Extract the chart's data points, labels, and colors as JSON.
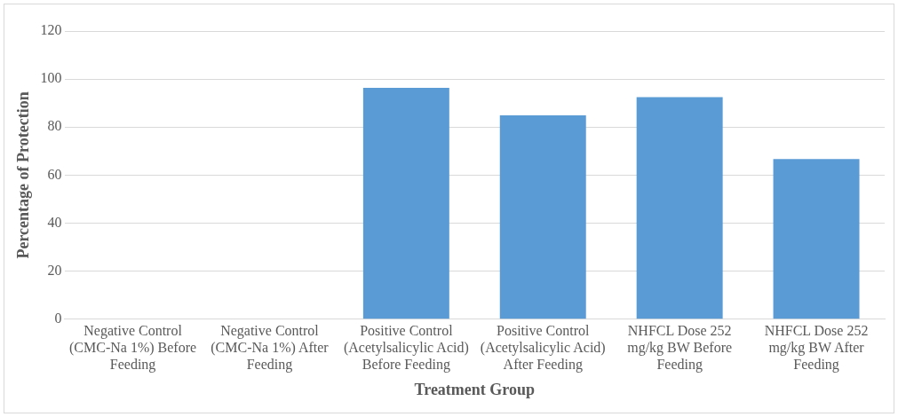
{
  "chart_data": {
    "type": "bar",
    "xlabel": "Treatment Group",
    "ylabel": "Percentage of Protection",
    "categories": [
      "Negative Control (CMC-Na 1%) Before Feeding",
      "Negative Control (CMC-Na 1%) After Feeding",
      "Positive Control (Acetylsalicylic Acid) Before Feeding",
      "Positive Control (Acetylsalicylic Acid) After Feeding",
      "NHFCL Dose 252 mg/kg BW Before Feeding",
      "NHFCL Dose 252 mg/kg BW After Feeding"
    ],
    "values": [
      0,
      0,
      96.4,
      84.9,
      92.5,
      66.7
    ],
    "color": "#5b9bd5",
    "ylim": [
      0,
      120
    ],
    "yticks": [
      0,
      20,
      40,
      60,
      80,
      100,
      120
    ],
    "grid": "y"
  }
}
